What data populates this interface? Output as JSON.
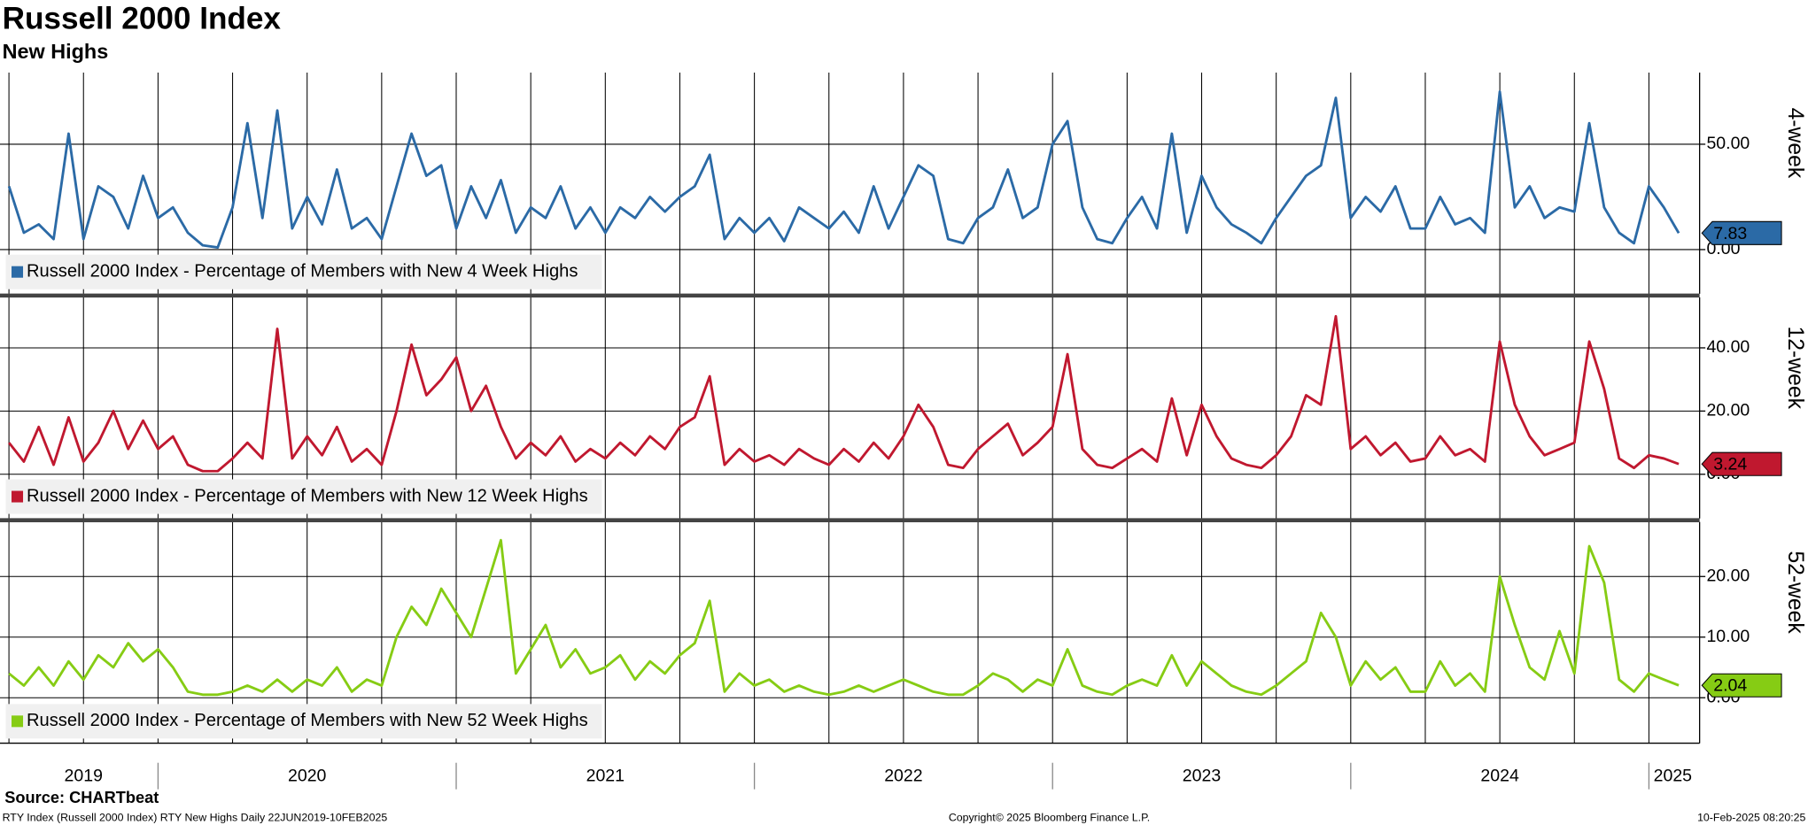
{
  "title": "Russell 2000 Index",
  "subtitle": "New Highs",
  "source": "Source: CHARTbeat",
  "footer": {
    "left": "RTY Index (Russell 2000 Index) RTY New Highs  Daily 22JUN2019-10FEB2025",
    "center": "Copyright© 2025 Bloomberg Finance L.P.",
    "right": "10-Feb-2025 08:20:25"
  },
  "x_axis": {
    "xlim": [
      2019.47,
      2025.17
    ],
    "xticks": [
      2019.5,
      2019.75,
      2020,
      2020.25,
      2020.5,
      2020.75,
      2021,
      2021.25,
      2021.5,
      2021.75,
      2022,
      2022.25,
      2022.5,
      2022.75,
      2023,
      2023.25,
      2023.5,
      2023.75,
      2024,
      2024.25,
      2024.5,
      2024.75,
      2025
    ],
    "year_ticks": [
      2020,
      2021,
      2022,
      2023,
      2024,
      2025
    ],
    "year_labels": [
      {
        "value": 2019.75,
        "label": "2019"
      },
      {
        "value": 2020.5,
        "label": "2020"
      },
      {
        "value": 2021.5,
        "label": "2021"
      },
      {
        "value": 2022.5,
        "label": "2022"
      },
      {
        "value": 2023.5,
        "label": "2023"
      },
      {
        "value": 2024.5,
        "label": "2024"
      },
      {
        "value": 2025.08,
        "label": "2025"
      }
    ],
    "x": [
      2019.5,
      2019.55,
      2019.6,
      2019.65,
      2019.7,
      2019.75,
      2019.8,
      2019.85,
      2019.9,
      2019.95,
      2020,
      2020.05,
      2020.1,
      2020.15,
      2020.2,
      2020.25,
      2020.3,
      2020.35,
      2020.4,
      2020.45,
      2020.5,
      2020.55,
      2020.6,
      2020.65,
      2020.7,
      2020.75,
      2020.8,
      2020.85,
      2020.9,
      2020.95,
      2021,
      2021.05,
      2021.1,
      2021.15,
      2021.2,
      2021.25,
      2021.3,
      2021.35,
      2021.4,
      2021.45,
      2021.5,
      2021.55,
      2021.6,
      2021.65,
      2021.7,
      2021.75,
      2021.8,
      2021.85,
      2021.9,
      2021.95,
      2022,
      2022.05,
      2022.1,
      2022.15,
      2022.2,
      2022.25,
      2022.3,
      2022.35,
      2022.4,
      2022.45,
      2022.5,
      2022.55,
      2022.6,
      2022.65,
      2022.7,
      2022.75,
      2022.8,
      2022.85,
      2022.9,
      2022.95,
      2023,
      2023.05,
      2023.1,
      2023.15,
      2023.2,
      2023.25,
      2023.3,
      2023.35,
      2023.4,
      2023.45,
      2023.5,
      2023.55,
      2023.6,
      2023.65,
      2023.7,
      2023.75,
      2023.8,
      2023.85,
      2023.9,
      2023.95,
      2024,
      2024.05,
      2024.1,
      2024.15,
      2024.2,
      2024.25,
      2024.3,
      2024.35,
      2024.4,
      2024.45,
      2024.5,
      2024.55,
      2024.6,
      2024.65,
      2024.7,
      2024.75,
      2024.8,
      2024.85,
      2024.9,
      2024.95,
      2025,
      2025.05,
      2025.1
    ]
  },
  "chart_data": [
    {
      "type": "line",
      "axis_title": "4-week",
      "ylim": [
        -21,
        84
      ],
      "yticks": [
        {
          "value": 0,
          "label": "0.00"
        },
        {
          "value": 50,
          "label": "50.00"
        }
      ],
      "last_value_label": "7.83",
      "series": [
        {
          "name": "Russell 2000 Index - Percentage of Members with New 4 Week Highs",
          "color": "#2b6aa6",
          "values": [
            30,
            8,
            12,
            5,
            55,
            5,
            30,
            25,
            10,
            35,
            15,
            20,
            8,
            2,
            1,
            20,
            60,
            15,
            66,
            10,
            25,
            12,
            38,
            10,
            15,
            5,
            30,
            55,
            35,
            40,
            10,
            30,
            15,
            33,
            8,
            20,
            15,
            30,
            10,
            20,
            8,
            20,
            15,
            25,
            18,
            25,
            30,
            45,
            5,
            15,
            8,
            15,
            4,
            20,
            15,
            10,
            18,
            8,
            30,
            10,
            25,
            40,
            35,
            5,
            3,
            15,
            20,
            38,
            15,
            20,
            50,
            61,
            20,
            5,
            3,
            15,
            25,
            10,
            55,
            8,
            35,
            20,
            12,
            8,
            3,
            15,
            25,
            35,
            40,
            72,
            15,
            25,
            18,
            30,
            10,
            10,
            25,
            12,
            15,
            8,
            75,
            20,
            30,
            15,
            20,
            18,
            60,
            20,
            8,
            3,
            30,
            20,
            7.83
          ]
        }
      ]
    },
    {
      "type": "line",
      "axis_title": "12-week",
      "ylim": [
        -14,
        56
      ],
      "yticks": [
        {
          "value": 0,
          "label": "0.00"
        },
        {
          "value": 20,
          "label": "20.00"
        },
        {
          "value": 40,
          "label": "40.00"
        }
      ],
      "last_value_label": "3.24",
      "series": [
        {
          "name": "Russell 2000 Index - Percentage of Members with New 12 Week Highs",
          "color": "#c0182f",
          "values": [
            10,
            4,
            15,
            3,
            18,
            4,
            10,
            20,
            8,
            17,
            8,
            12,
            3,
            1,
            1,
            5,
            10,
            5,
            46,
            5,
            12,
            6,
            15,
            4,
            8,
            3,
            20,
            41,
            25,
            30,
            37,
            20,
            28,
            15,
            5,
            10,
            6,
            12,
            4,
            8,
            5,
            10,
            6,
            12,
            8,
            15,
            18,
            31,
            3,
            8,
            4,
            6,
            3,
            8,
            5,
            3,
            8,
            4,
            10,
            5,
            12,
            22,
            15,
            3,
            2,
            8,
            12,
            16,
            6,
            10,
            15,
            38,
            8,
            3,
            2,
            5,
            8,
            4,
            24,
            6,
            22,
            12,
            5,
            3,
            2,
            6,
            12,
            25,
            22,
            50,
            8,
            12,
            6,
            10,
            4,
            5,
            12,
            6,
            8,
            4,
            42,
            22,
            12,
            6,
            8,
            10,
            42,
            27,
            5,
            2,
            6,
            5,
            3.24
          ]
        }
      ]
    },
    {
      "type": "line",
      "axis_title": "52-week",
      "ylim": [
        -7.5,
        29
      ],
      "yticks": [
        {
          "value": 0,
          "label": "0.00"
        },
        {
          "value": 10,
          "label": "10.00"
        },
        {
          "value": 20,
          "label": "20.00"
        }
      ],
      "last_value_label": "2.04",
      "series": [
        {
          "name": "Russell 2000 Index - Percentage of Members with New 52 Week Highs",
          "color": "#86cc14",
          "values": [
            4,
            2,
            5,
            2,
            6,
            3,
            7,
            5,
            9,
            6,
            8,
            5,
            1,
            0.5,
            0.5,
            1,
            2,
            1,
            3,
            1,
            3,
            2,
            5,
            1,
            3,
            2,
            10,
            15,
            12,
            18,
            14,
            10,
            18,
            26,
            4,
            8,
            12,
            5,
            8,
            4,
            5,
            7,
            3,
            6,
            4,
            7,
            9,
            16,
            1,
            4,
            2,
            3,
            1,
            2,
            1,
            0.5,
            1,
            2,
            1,
            2,
            3,
            2,
            1,
            0.5,
            0.5,
            2,
            4,
            3,
            1,
            3,
            2,
            8,
            2,
            1,
            0.5,
            2,
            3,
            2,
            7,
            2,
            6,
            4,
            2,
            1,
            0.5,
            2,
            4,
            6,
            14,
            10,
            2,
            6,
            3,
            5,
            1,
            1,
            6,
            2,
            4,
            1,
            20,
            12,
            5,
            3,
            11,
            4,
            25,
            19,
            3,
            1,
            4,
            3,
            2.04
          ]
        }
      ]
    }
  ]
}
